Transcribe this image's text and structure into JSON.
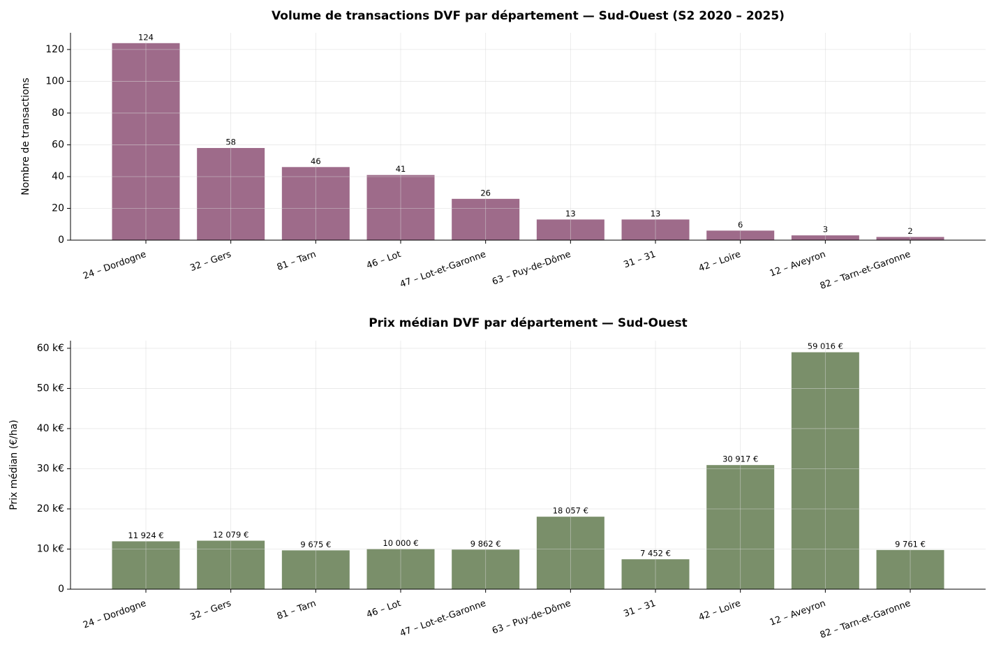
{
  "chart_data": [
    {
      "type": "bar",
      "title": "Volume de transactions DVF par département — Sud-Ouest (S2 2020 – 2025)",
      "y_label": "Nombre de transactions",
      "categories": [
        "24 – Dordogne",
        "32 – Gers",
        "81 – Tarn",
        "46 – Lot",
        "47 – Lot-et-Garonne",
        "63 – Puy-de-Dôme",
        "31 – 31",
        "42 – Loire",
        "12 – Aveyron",
        "82 – Tarn-et-Garonne"
      ],
      "values": [
        124,
        58,
        46,
        41,
        26,
        13,
        13,
        6,
        3,
        2
      ],
      "color": "#9e6b8a",
      "ylim": [
        0,
        130.5
      ],
      "yticks": [
        0,
        20,
        40,
        60,
        80,
        100,
        120
      ],
      "grid": true
    },
    {
      "type": "bar",
      "title": "Prix médian DVF par département — Sud-Ouest",
      "y_label": "Prix médian (€/ha)",
      "categories": [
        "24 – Dordogne",
        "32 – Gers",
        "81 – Tarn",
        "46 – Lot",
        "47 – Lot-et-Garonne",
        "63 – Puy-de-Dôme",
        "31 – 31",
        "42 – Loire",
        "12 – Aveyron",
        "82 – Tarn-et-Garonne"
      ],
      "values": [
        11924,
        12079,
        9675,
        10000,
        9862,
        18057,
        7452,
        30917,
        59016,
        9761
      ],
      "value_labels": [
        "11 924 €",
        "12 079 €",
        "9 675 €",
        "10 000 €",
        "9 862 €",
        "18 057 €",
        "7 452 €",
        "30 917 €",
        "59 016 €",
        "9 761 €"
      ],
      "color": "#7a8f6a",
      "ylim": [
        0,
        61900
      ],
      "yticks": [
        0,
        {
          "value": 10000,
          "label": "10 k€"
        },
        {
          "value": 20000,
          "label": "20 k€"
        },
        {
          "value": 30000,
          "label": "30 k€"
        },
        {
          "value": 40000,
          "label": "40 k€"
        },
        {
          "value": 50000,
          "label": "50 k€"
        },
        {
          "value": 60000,
          "label": "60 k€"
        }
      ],
      "grid": true
    }
  ]
}
